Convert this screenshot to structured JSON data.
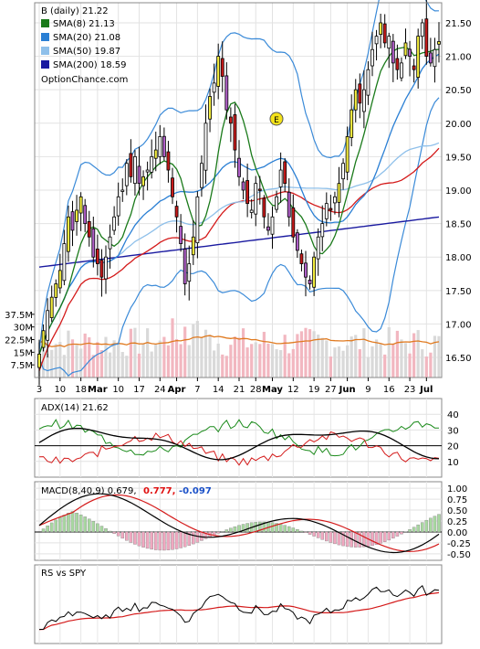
{
  "chart_data": [
    {
      "type": "candlestick",
      "panel": "price",
      "title": "B (daily) 21.22",
      "watermark": "OptionChance.com",
      "ylim": [
        16.2,
        21.8
      ],
      "y_ticks": [
        "21.50",
        "21.00",
        "20.50",
        "20.00",
        "19.50",
        "19.00",
        "18.50",
        "18.00",
        "17.50",
        "17.00",
        "16.50"
      ],
      "x_ticks": [
        "3",
        "10",
        "18",
        "Mar",
        "10",
        "17",
        "24",
        "Apr",
        "7",
        "14",
        "21",
        "28",
        "May",
        "12",
        "19",
        "27",
        "Jun",
        "9",
        "16",
        "23",
        "Jul"
      ],
      "earnings_marker": "E",
      "legend": [
        {
          "label": "SMA(8) 21.13",
          "color": "#1a7a1a"
        },
        {
          "label": "SMA(20) 21.08",
          "color": "#2a7fd4"
        },
        {
          "label": "SMA(50) 19.87",
          "color": "#8fc0ea"
        },
        {
          "label": "SMA(200) 18.59",
          "color": "#1a1aa0"
        }
      ],
      "close": [
        16.55,
        16.9,
        17.2,
        17.4,
        17.6,
        17.8,
        18.2,
        18.6,
        18.4,
        18.7,
        18.9,
        18.5,
        18.3,
        18.0,
        17.9,
        17.7,
        18.0,
        18.3,
        18.6,
        18.9,
        19.0,
        19.4,
        19.2,
        19.5,
        19.1,
        19.2,
        19.3,
        19.5,
        19.6,
        19.8,
        19.5,
        19.3,
        18.9,
        18.6,
        18.2,
        17.6,
        17.9,
        18.3,
        18.9,
        19.4,
        20.0,
        20.4,
        20.6,
        21.0,
        20.7,
        20.2,
        20.0,
        19.6,
        19.2,
        19.0,
        18.8,
        18.7,
        19.1,
        19.0,
        18.6,
        18.4,
        18.6,
        18.9,
        19.3,
        19.1,
        18.6,
        18.3,
        18.1,
        17.9,
        17.7,
        17.6,
        18.0,
        18.3,
        18.5,
        18.8,
        18.7,
        18.9,
        19.1,
        19.4,
        19.8,
        20.2,
        20.5,
        20.3,
        20.5,
        20.8,
        21.1,
        21.3,
        21.5,
        21.2,
        21.3,
        20.9,
        20.8,
        20.9,
        21.2,
        21.0,
        20.8,
        21.3,
        21.5,
        21.0,
        20.9,
        21.1,
        21.22
      ],
      "volume_ylim": [
        0,
        45
      ],
      "volume_ticks": [
        "37.5M",
        "30M",
        "22.5M",
        "15M",
        "7.5M"
      ]
    },
    {
      "type": "line",
      "panel": "adx",
      "title": "ADX(14) 21.62",
      "ylim": [
        0,
        50
      ],
      "y_ticks": [
        "40",
        "30",
        "20",
        "10"
      ]
    },
    {
      "type": "histogram-line",
      "panel": "macd",
      "title_prefix": "MACD(8,40,9) 0.679,",
      "title_red": "0.777,",
      "title_blue": "-0.097",
      "ylim": [
        -0.65,
        1.15
      ],
      "y_ticks": [
        "1.00",
        "0.75",
        "0.50",
        "0.25",
        "0.00",
        "-0.25",
        "-0.50"
      ]
    },
    {
      "type": "line",
      "panel": "rs",
      "title": "RS vs SPY"
    }
  ]
}
